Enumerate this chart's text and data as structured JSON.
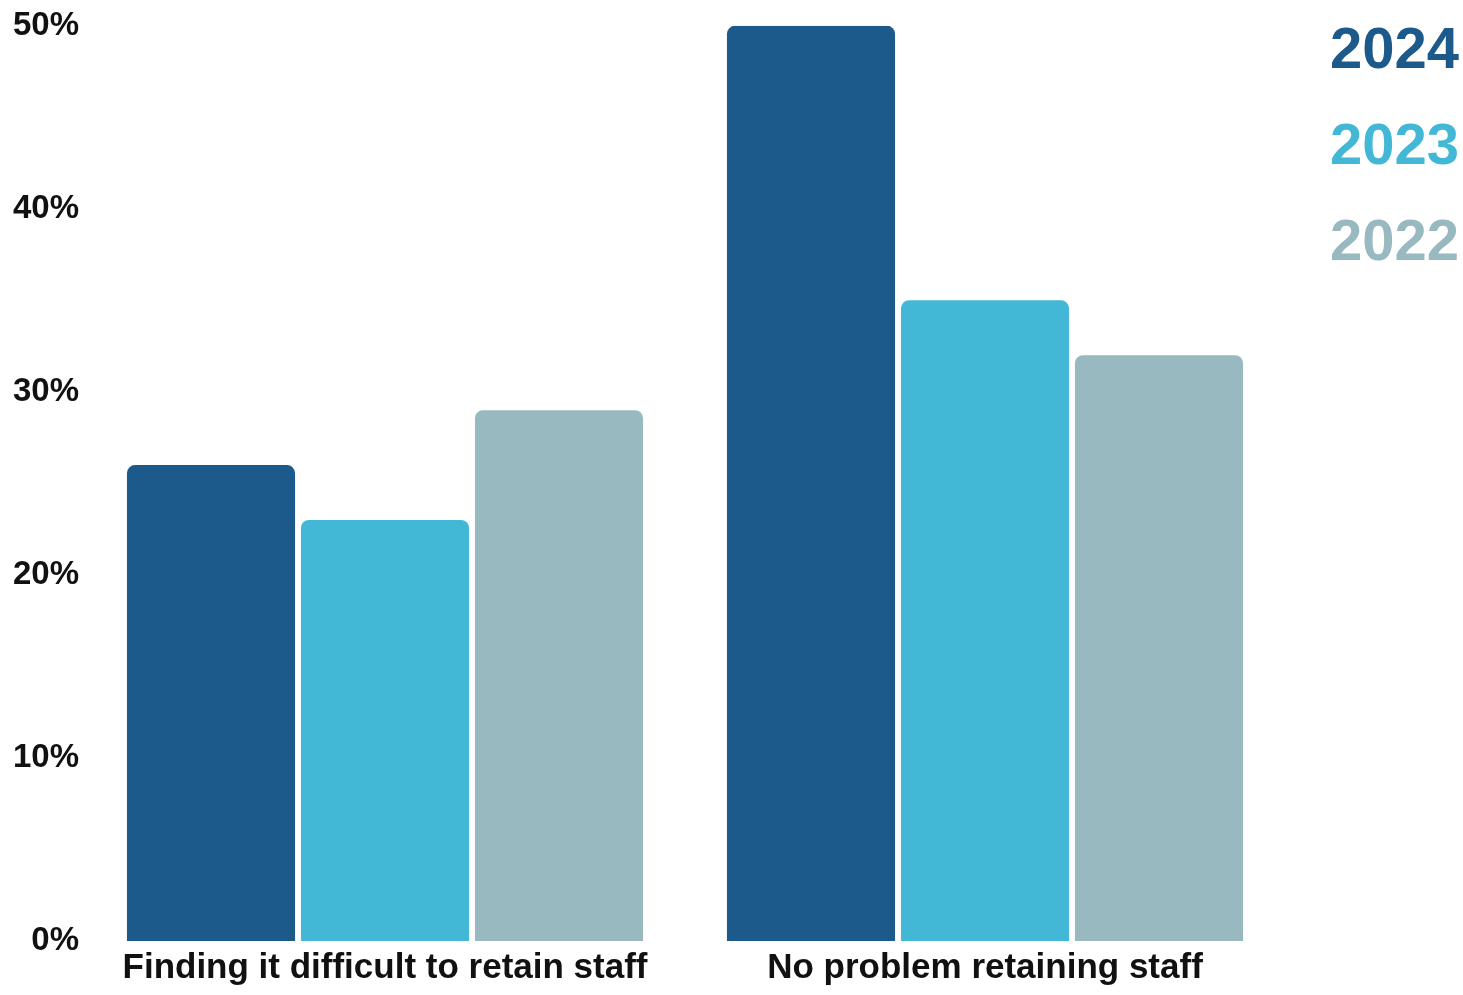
{
  "chart_data": {
    "type": "bar",
    "categories": [
      "Finding it difficult to retain staff",
      "No problem retaining staff"
    ],
    "series": [
      {
        "name": "2024",
        "color": "#1d5a8c",
        "values": [
          26,
          50
        ]
      },
      {
        "name": "2023",
        "color": "#43b8d6",
        "values": [
          23,
          35
        ]
      },
      {
        "name": "2022",
        "color": "#97b9bf",
        "values": [
          29,
          32
        ]
      }
    ],
    "ylim": [
      0,
      50
    ],
    "yticks": [
      {
        "value": 0,
        "label": "0%"
      },
      {
        "value": 10,
        "label": "10%"
      },
      {
        "value": 20,
        "label": "20%"
      },
      {
        "value": 30,
        "label": "30%"
      },
      {
        "value": 40,
        "label": "40%"
      },
      {
        "value": 50,
        "label": "50%"
      }
    ],
    "grid": false,
    "legend": "top right"
  }
}
